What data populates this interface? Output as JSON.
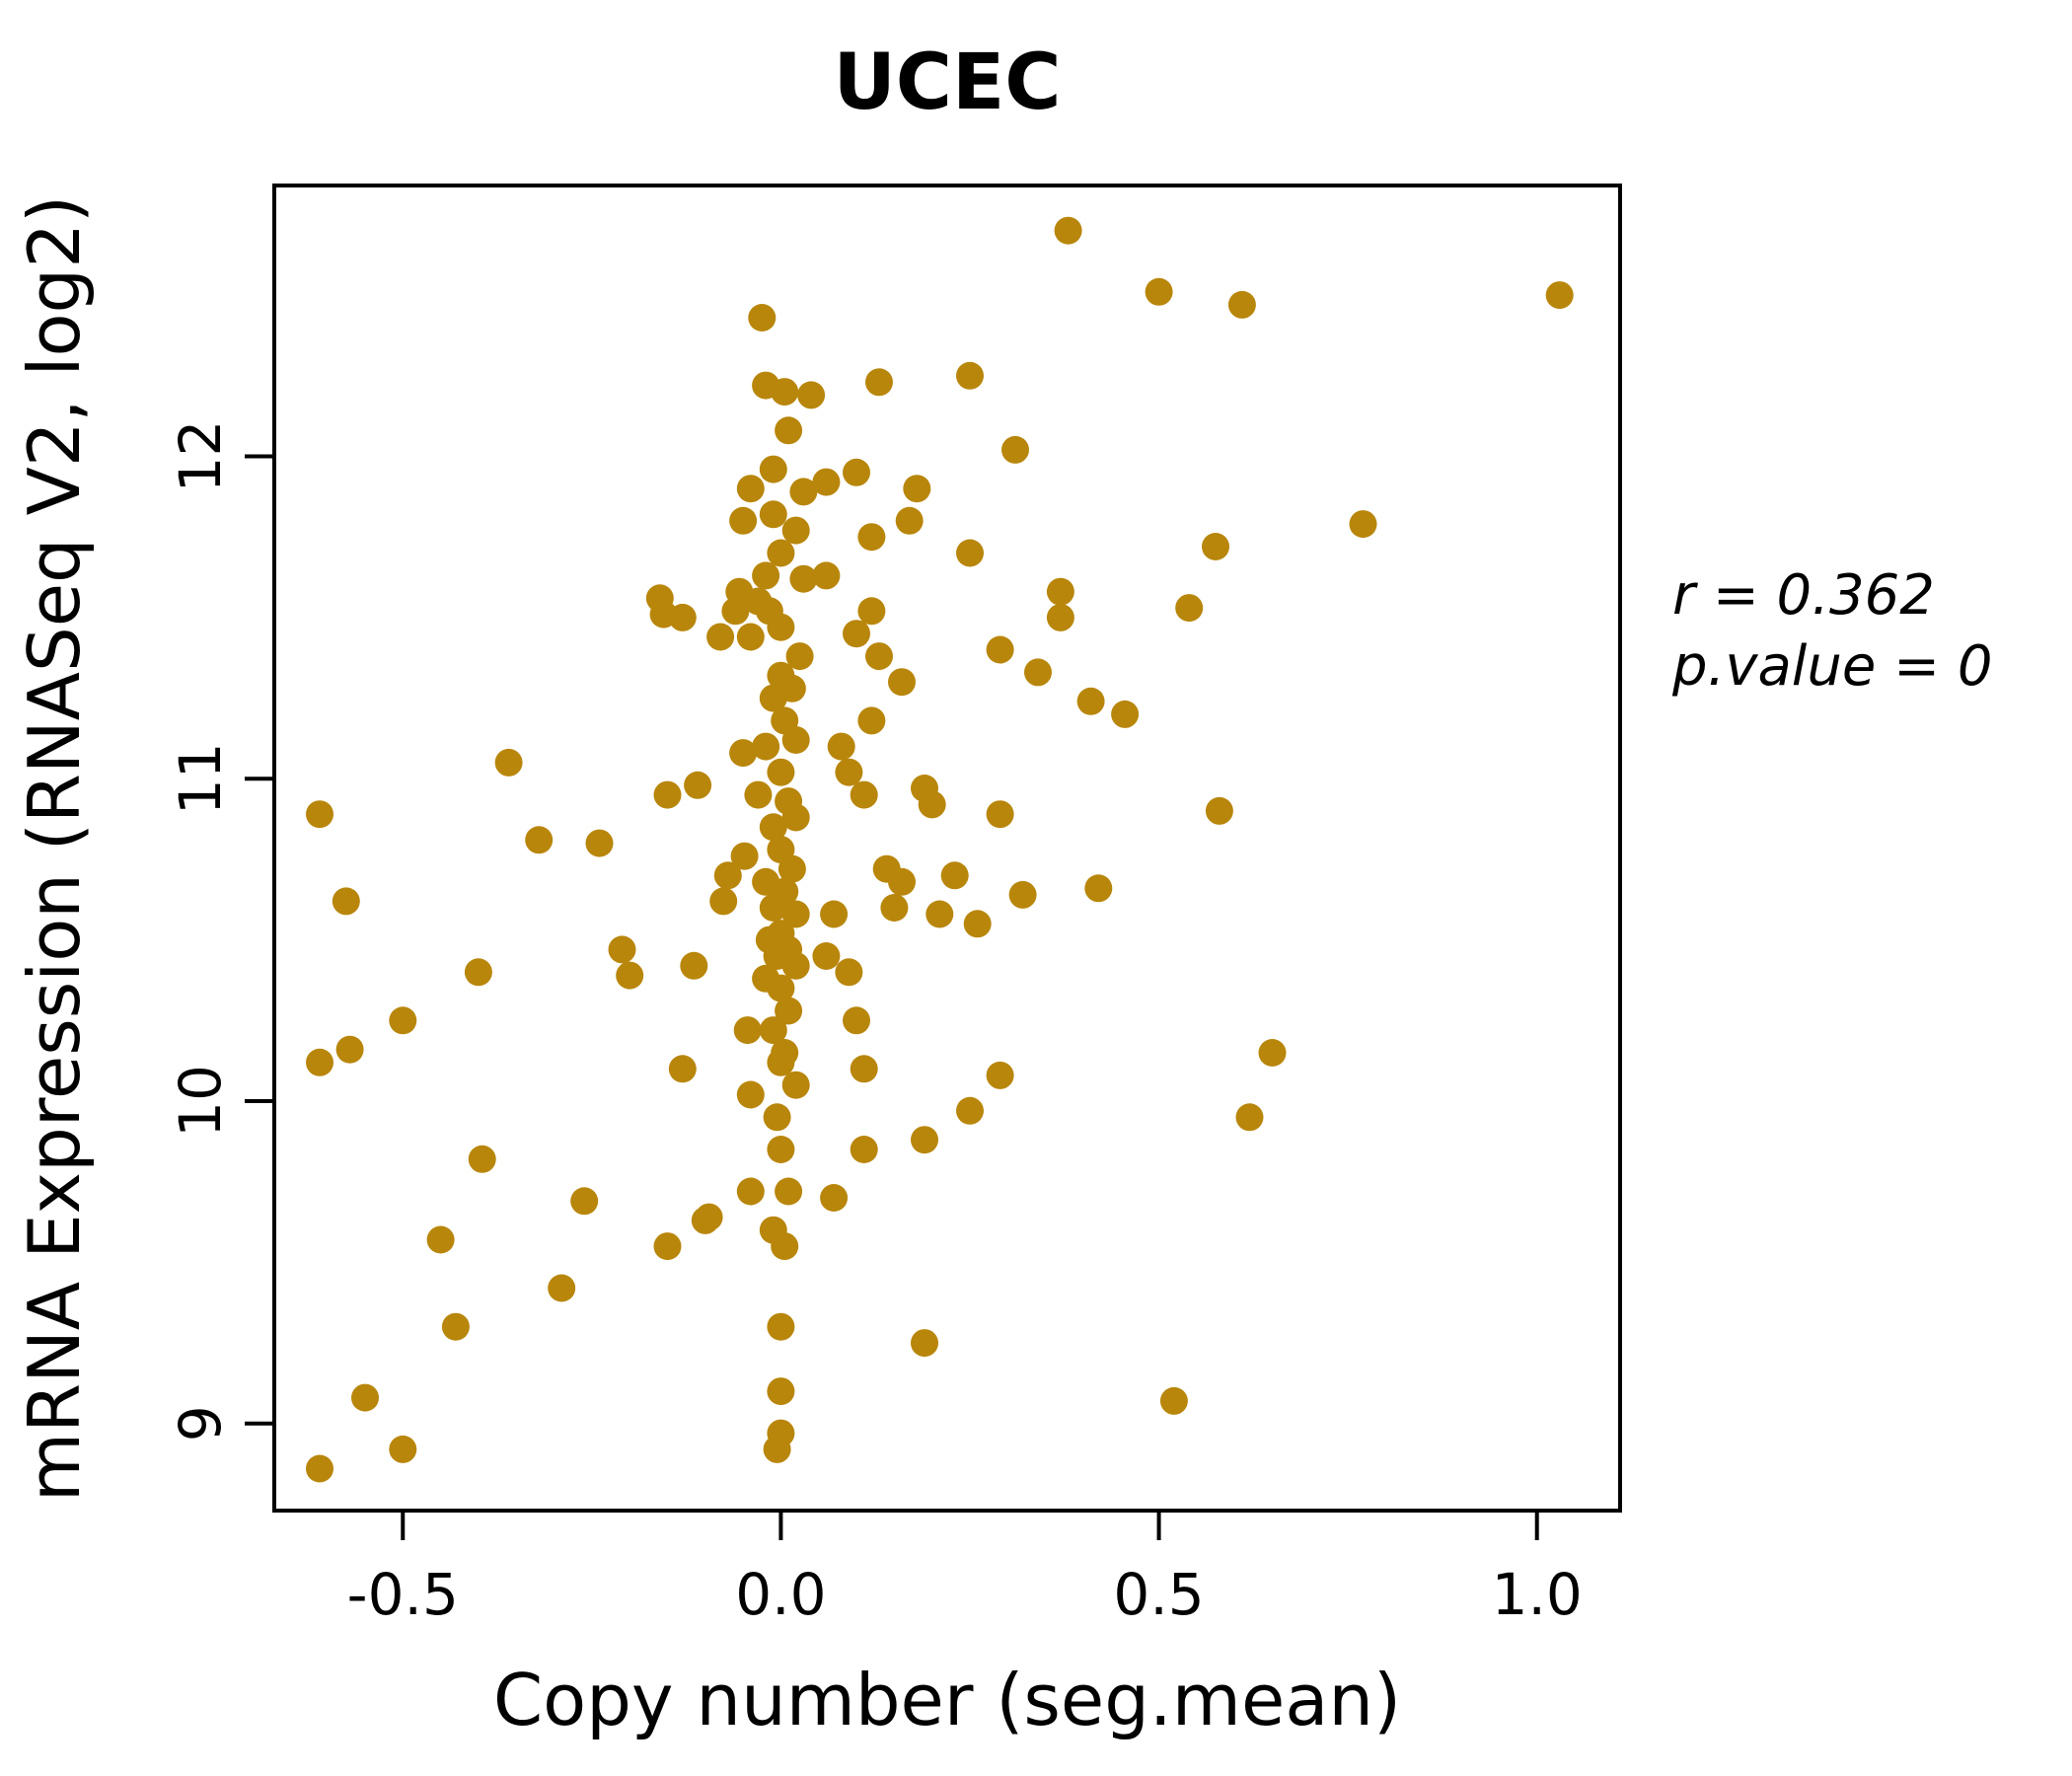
{
  "figure": {
    "title": "UCEC",
    "annotation": {
      "line1": "r = 0.362",
      "line2": "p.value = 0"
    }
  },
  "chart_data": {
    "type": "scatter",
    "title": "UCEC",
    "xlabel": "Copy number (seg.mean)",
    "ylabel": "mRNA Expression (RNASeq V2, log2)",
    "xlim": [
      -0.67,
      1.11
    ],
    "ylim": [
      8.73,
      12.84
    ],
    "xticks": {
      "values": [
        -0.5,
        0.0,
        0.5,
        1.0
      ],
      "labels": [
        "-0.5",
        "0.0",
        "0.5",
        "1.0"
      ]
    },
    "yticks": {
      "values": [
        9,
        10,
        11,
        12
      ],
      "labels": [
        "9",
        "10",
        "11",
        "12"
      ]
    },
    "grid": false,
    "legend": "none",
    "point_color": "#B8860B",
    "title_color": "#B8860B",
    "stats": {
      "r": 0.362,
      "p_value": 0
    },
    "points": [
      [
        -0.61,
        8.86
      ],
      [
        -0.55,
        9.08
      ],
      [
        -0.5,
        8.92
      ],
      [
        -0.61,
        10.12
      ],
      [
        -0.57,
        10.16
      ],
      [
        -0.575,
        10.62
      ],
      [
        -0.61,
        10.89
      ],
      [
        -0.5,
        10.25
      ],
      [
        -0.45,
        9.57
      ],
      [
        -0.43,
        9.3
      ],
      [
        -0.4,
        10.4
      ],
      [
        -0.395,
        9.82
      ],
      [
        -0.36,
        11.05
      ],
      [
        -0.32,
        10.81
      ],
      [
        -0.29,
        9.42
      ],
      [
        -0.26,
        9.69
      ],
      [
        -0.24,
        10.8
      ],
      [
        -0.21,
        10.47
      ],
      [
        -0.2,
        10.39
      ],
      [
        -0.16,
        11.56
      ],
      [
        -0.155,
        11.51
      ],
      [
        -0.15,
        10.95
      ],
      [
        -0.15,
        9.55
      ],
      [
        -0.13,
        11.5
      ],
      [
        -0.13,
        10.1
      ],
      [
        -0.115,
        10.42
      ],
      [
        -0.11,
        10.98
      ],
      [
        -0.1,
        9.63
      ],
      [
        -0.095,
        9.64
      ],
      [
        -0.08,
        11.44
      ],
      [
        -0.076,
        10.62
      ],
      [
        -0.07,
        10.7
      ],
      [
        -0.06,
        11.52
      ],
      [
        -0.055,
        11.58
      ],
      [
        -0.05,
        11.08
      ],
      [
        -0.048,
        10.76
      ],
      [
        -0.044,
        10.22
      ],
      [
        -0.04,
        10.02
      ],
      [
        -0.04,
        9.72
      ],
      [
        -0.025,
        12.43
      ],
      [
        -0.02,
        12.22
      ],
      [
        0.005,
        12.2
      ],
      [
        0.01,
        12.08
      ],
      [
        -0.01,
        11.96
      ],
      [
        -0.04,
        11.9
      ],
      [
        0.03,
        11.89
      ],
      [
        -0.01,
        11.82
      ],
      [
        -0.05,
        11.8
      ],
      [
        0.02,
        11.77
      ],
      [
        0.0,
        11.7
      ],
      [
        -0.02,
        11.63
      ],
      [
        0.03,
        11.62
      ],
      [
        -0.03,
        11.55
      ],
      [
        -0.015,
        11.52
      ],
      [
        0.0,
        11.47
      ],
      [
        -0.04,
        11.44
      ],
      [
        0.025,
        11.38
      ],
      [
        0.0,
        11.32
      ],
      [
        0.015,
        11.28
      ],
      [
        -0.01,
        11.25
      ],
      [
        0.005,
        11.18
      ],
      [
        0.02,
        11.12
      ],
      [
        -0.02,
        11.1
      ],
      [
        0.0,
        11.02
      ],
      [
        -0.03,
        10.95
      ],
      [
        0.01,
        10.93
      ],
      [
        0.02,
        10.88
      ],
      [
        -0.01,
        10.85
      ],
      [
        0.0,
        10.78
      ],
      [
        0.015,
        10.72
      ],
      [
        -0.02,
        10.68
      ],
      [
        0.005,
        10.65
      ],
      [
        -0.01,
        10.6
      ],
      [
        0.02,
        10.58
      ],
      [
        0.0,
        10.52
      ],
      [
        -0.015,
        10.5
      ],
      [
        0.01,
        10.47
      ],
      [
        -0.005,
        10.45
      ],
      [
        0.02,
        10.42
      ],
      [
        -0.02,
        10.38
      ],
      [
        0.0,
        10.35
      ],
      [
        0.01,
        10.28
      ],
      [
        -0.01,
        10.22
      ],
      [
        0.005,
        10.15
      ],
      [
        0.0,
        10.12
      ],
      [
        0.02,
        10.05
      ],
      [
        -0.005,
        9.95
      ],
      [
        0.0,
        9.85
      ],
      [
        0.01,
        9.72
      ],
      [
        -0.01,
        9.6
      ],
      [
        0.005,
        9.55
      ],
      [
        0.0,
        9.3
      ],
      [
        0.0,
        9.1
      ],
      [
        0.0,
        8.97
      ],
      [
        -0.005,
        8.92
      ],
      [
        0.04,
        12.19
      ],
      [
        0.13,
        12.23
      ],
      [
        0.25,
        12.25
      ],
      [
        0.1,
        11.95
      ],
      [
        0.06,
        11.92
      ],
      [
        0.18,
        11.9
      ],
      [
        0.17,
        11.8
      ],
      [
        0.12,
        11.75
      ],
      [
        0.25,
        11.7
      ],
      [
        0.06,
        11.63
      ],
      [
        0.12,
        11.52
      ],
      [
        0.1,
        11.45
      ],
      [
        0.13,
        11.38
      ],
      [
        0.29,
        11.4
      ],
      [
        0.16,
        11.3
      ],
      [
        0.12,
        11.18
      ],
      [
        0.08,
        11.1
      ],
      [
        0.09,
        11.02
      ],
      [
        0.11,
        10.95
      ],
      [
        0.19,
        10.97
      ],
      [
        0.2,
        10.92
      ],
      [
        0.14,
        10.72
      ],
      [
        0.16,
        10.68
      ],
      [
        0.23,
        10.7
      ],
      [
        0.15,
        10.6
      ],
      [
        0.21,
        10.58
      ],
      [
        0.26,
        10.55
      ],
      [
        0.07,
        10.58
      ],
      [
        0.06,
        10.45
      ],
      [
        0.09,
        10.4
      ],
      [
        0.1,
        10.25
      ],
      [
        0.11,
        10.1
      ],
      [
        0.19,
        9.88
      ],
      [
        0.11,
        9.85
      ],
      [
        0.07,
        9.7
      ],
      [
        0.25,
        9.97
      ],
      [
        0.19,
        9.25
      ],
      [
        0.31,
        12.02
      ],
      [
        0.38,
        12.7
      ],
      [
        0.5,
        12.51
      ],
      [
        0.61,
        12.47
      ],
      [
        1.03,
        12.5
      ],
      [
        0.37,
        11.58
      ],
      [
        0.37,
        11.5
      ],
      [
        0.575,
        11.72
      ],
      [
        0.77,
        11.79
      ],
      [
        0.54,
        11.53
      ],
      [
        0.34,
        11.33
      ],
      [
        0.41,
        11.24
      ],
      [
        0.455,
        11.2
      ],
      [
        0.29,
        10.89
      ],
      [
        0.58,
        10.9
      ],
      [
        0.32,
        10.64
      ],
      [
        0.42,
        10.66
      ],
      [
        0.65,
        10.15
      ],
      [
        0.62,
        9.95
      ],
      [
        0.29,
        10.08
      ],
      [
        0.52,
        9.07
      ]
    ]
  }
}
